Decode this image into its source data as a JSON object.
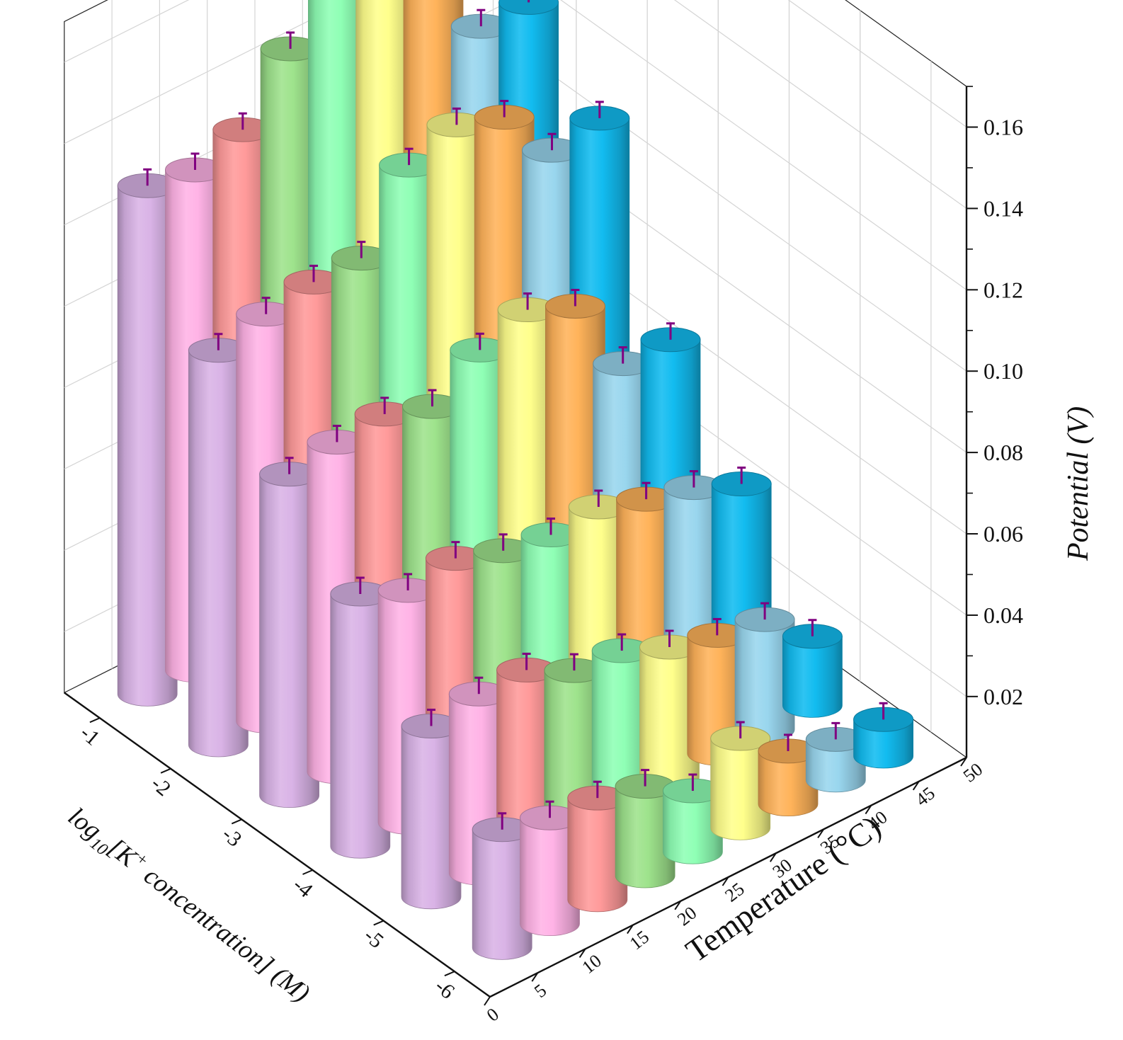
{
  "chart_data": {
    "type": "bar3d",
    "x_axis": {
      "label_parts": [
        "log",
        "10",
        "[K",
        "+",
        " concentration] (M)"
      ],
      "tick_labels": [
        "-1",
        "-2",
        "-3",
        "-4",
        "-5",
        "-6"
      ],
      "categories": [
        -1,
        -2,
        -3,
        -4,
        -5,
        -6
      ]
    },
    "y_axis": {
      "label": "Temperature (°C)",
      "tick_labels": [
        "0",
        "5",
        "10",
        "15",
        "20",
        "25",
        "30",
        "35",
        "40",
        "45",
        "50"
      ],
      "range": [
        0,
        50
      ]
    },
    "z_axis": {
      "label": "Potential (V)",
      "tick_labels": [
        "0.02",
        "0.04",
        "0.06",
        "0.08",
        "0.10",
        "0.12",
        "0.14",
        "0.16"
      ],
      "range": [
        0.005,
        0.17
      ]
    },
    "temperatures": [
      5,
      10,
      15,
      20,
      25,
      30,
      35,
      40,
      45
    ],
    "series_colors": [
      "#d9b3e6",
      "#ffb3e6",
      "#ff9a9a",
      "#9ee38c",
      "#8fffb5",
      "#ffff8c",
      "#ffb35a",
      "#99d6ee",
      "#12bcf0"
    ],
    "values": [
      [
        0.13,
        0.128,
        0.132,
        0.146,
        0.156,
        0.162,
        0.156,
        0.128,
        0.128
      ],
      [
        0.102,
        0.105,
        0.107,
        0.107,
        0.124,
        0.128,
        0.124,
        0.11,
        0.112
      ],
      [
        0.084,
        0.086,
        0.087,
        0.083,
        0.091,
        0.095,
        0.09,
        0.07,
        0.07
      ],
      [
        0.067,
        0.062,
        0.064,
        0.06,
        0.058,
        0.059,
        0.055,
        0.052,
        0.047
      ],
      [
        0.047,
        0.049,
        0.049,
        0.043,
        0.042,
        0.037,
        0.034,
        0.032,
        0.022
      ],
      [
        0.034,
        0.031,
        0.03,
        0.027,
        0.02,
        0.027,
        0.018,
        0.015,
        0.014
      ]
    ],
    "error": 0.004,
    "errorbar_color": "#800080",
    "grid": true
  }
}
